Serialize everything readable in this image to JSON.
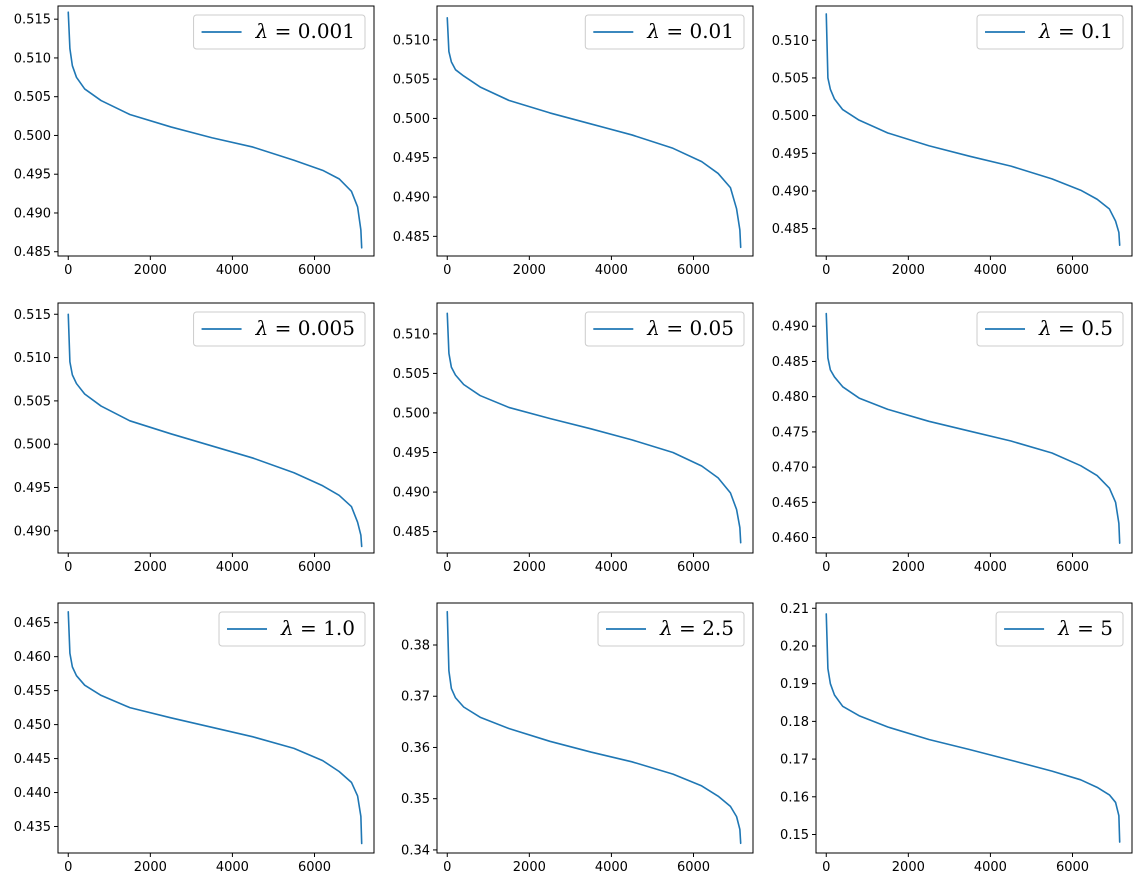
{
  "figure": {
    "colors": {
      "line": "#1f77b4",
      "frame": "#000000",
      "background": "#ffffff",
      "legend_border": "#cccccc"
    }
  },
  "chart_data": [
    {
      "type": "line",
      "legend_label": "λ = 0.001",
      "legend_symbol": "λ",
      "legend_value": "0.001",
      "legend_location": "upper right",
      "xlim": [
        -250,
        7450
      ],
      "ylim": [
        0.48445,
        0.5167
      ],
      "xticks": [
        0,
        2000,
        4000,
        6000
      ],
      "xtick_labels": [
        "0",
        "2000",
        "4000",
        "6000"
      ],
      "yticks": [
        0.485,
        0.49,
        0.495,
        0.5,
        0.505,
        0.51,
        0.515
      ],
      "ytick_labels": [
        "0.485",
        "0.490",
        "0.495",
        "0.500",
        "0.505",
        "0.510",
        "0.515"
      ],
      "x": [
        0,
        40,
        100,
        200,
        400,
        800,
        1500,
        2500,
        3500,
        4500,
        5500,
        6200,
        6600,
        6900,
        7050,
        7130,
        7150
      ],
      "y": [
        0.5159,
        0.5112,
        0.509,
        0.5075,
        0.506,
        0.5045,
        0.5027,
        0.5011,
        0.4997,
        0.4985,
        0.4968,
        0.4955,
        0.4944,
        0.4928,
        0.4908,
        0.4878,
        0.4855
      ]
    },
    {
      "type": "line",
      "legend_label": "λ = 0.01",
      "legend_symbol": "λ",
      "legend_value": "0.01",
      "legend_location": "upper right",
      "xlim": [
        -250,
        7450
      ],
      "ylim": [
        0.4825,
        0.5143
      ],
      "xticks": [
        0,
        2000,
        4000,
        6000
      ],
      "xtick_labels": [
        "0",
        "2000",
        "4000",
        "6000"
      ],
      "yticks": [
        0.485,
        0.49,
        0.495,
        0.5,
        0.505,
        0.51
      ],
      "ytick_labels": [
        "0.485",
        "0.490",
        "0.495",
        "0.500",
        "0.505",
        "0.510"
      ],
      "x": [
        0,
        40,
        100,
        200,
        400,
        800,
        1500,
        2500,
        3500,
        4500,
        5500,
        6200,
        6600,
        6900,
        7050,
        7130,
        7150
      ],
      "y": [
        0.5128,
        0.5085,
        0.5072,
        0.5062,
        0.5054,
        0.504,
        0.5023,
        0.5007,
        0.4993,
        0.4979,
        0.4962,
        0.4945,
        0.493,
        0.4912,
        0.4885,
        0.4858,
        0.4836
      ]
    },
    {
      "type": "line",
      "legend_label": "λ = 0.1",
      "legend_symbol": "λ",
      "legend_value": "0.1",
      "legend_location": "upper right",
      "xlim": [
        -250,
        7450
      ],
      "ylim": [
        0.48137,
        0.51455
      ],
      "xticks": [
        0,
        2000,
        4000,
        6000
      ],
      "xtick_labels": [
        "0",
        "2000",
        "4000",
        "6000"
      ],
      "yticks": [
        0.485,
        0.49,
        0.495,
        0.5,
        0.505,
        0.51
      ],
      "ytick_labels": [
        "0.485",
        "0.490",
        "0.495",
        "0.500",
        "0.505",
        "0.510"
      ],
      "x": [
        0,
        40,
        100,
        200,
        400,
        800,
        1500,
        2500,
        3500,
        4500,
        5500,
        6200,
        6600,
        6900,
        7050,
        7130,
        7150
      ],
      "y": [
        0.5135,
        0.505,
        0.5035,
        0.5022,
        0.5008,
        0.4994,
        0.4977,
        0.496,
        0.4946,
        0.4933,
        0.4916,
        0.4901,
        0.4889,
        0.4876,
        0.486,
        0.4845,
        0.4828
      ]
    },
    {
      "type": "line",
      "legend_label": "λ = 0.005",
      "legend_symbol": "λ",
      "legend_value": "0.005",
      "legend_location": "upper right",
      "xlim": [
        -250,
        7450
      ],
      "ylim": [
        0.48744,
        0.5163
      ],
      "xticks": [
        0,
        2000,
        4000,
        6000
      ],
      "xtick_labels": [
        "0",
        "2000",
        "4000",
        "6000"
      ],
      "yticks": [
        0.49,
        0.495,
        0.5,
        0.505,
        0.51,
        0.515
      ],
      "ytick_labels": [
        "0.490",
        "0.495",
        "0.500",
        "0.505",
        "0.510",
        "0.515"
      ],
      "x": [
        0,
        40,
        100,
        200,
        400,
        800,
        1500,
        2500,
        3500,
        4500,
        5500,
        6200,
        6600,
        6900,
        7050,
        7130,
        7150
      ],
      "y": [
        0.515,
        0.5095,
        0.508,
        0.507,
        0.5058,
        0.5044,
        0.5027,
        0.5012,
        0.4998,
        0.4984,
        0.4967,
        0.4952,
        0.4941,
        0.4928,
        0.491,
        0.4895,
        0.4882
      ]
    },
    {
      "type": "line",
      "legend_label": "λ = 0.05",
      "legend_symbol": "λ",
      "legend_value": "0.05",
      "legend_location": "upper right",
      "xlim": [
        -250,
        7450
      ],
      "ylim": [
        0.4823,
        0.5139
      ],
      "xticks": [
        0,
        2000,
        4000,
        6000
      ],
      "xtick_labels": [
        "0",
        "2000",
        "4000",
        "6000"
      ],
      "yticks": [
        0.485,
        0.49,
        0.495,
        0.5,
        0.505,
        0.51
      ],
      "ytick_labels": [
        "0.485",
        "0.490",
        "0.495",
        "0.500",
        "0.505",
        "0.510"
      ],
      "x": [
        0,
        40,
        100,
        200,
        400,
        800,
        1500,
        2500,
        3500,
        4500,
        5500,
        6200,
        6600,
        6900,
        7050,
        7130,
        7150
      ],
      "y": [
        0.5126,
        0.5075,
        0.5058,
        0.5048,
        0.5036,
        0.5022,
        0.5007,
        0.4993,
        0.498,
        0.4966,
        0.495,
        0.4933,
        0.4918,
        0.4899,
        0.4878,
        0.4855,
        0.4836
      ]
    },
    {
      "type": "line",
      "legend_label": "λ = 0.5",
      "legend_symbol": "λ",
      "legend_value": "0.5",
      "legend_location": "upper right",
      "xlim": [
        -250,
        7450
      ],
      "ylim": [
        0.4578,
        0.4933
      ],
      "xticks": [
        0,
        2000,
        4000,
        6000
      ],
      "xtick_labels": [
        "0",
        "2000",
        "4000",
        "6000"
      ],
      "yticks": [
        0.46,
        0.465,
        0.47,
        0.475,
        0.48,
        0.485,
        0.49
      ],
      "ytick_labels": [
        "0.460",
        "0.465",
        "0.470",
        "0.475",
        "0.480",
        "0.485",
        "0.490"
      ],
      "x": [
        0,
        40,
        100,
        200,
        400,
        800,
        1500,
        2500,
        3500,
        4500,
        5500,
        6200,
        6600,
        6900,
        7050,
        7130,
        7150
      ],
      "y": [
        0.4918,
        0.4855,
        0.4838,
        0.4828,
        0.4814,
        0.4798,
        0.4782,
        0.4765,
        0.4751,
        0.4737,
        0.472,
        0.4702,
        0.4688,
        0.467,
        0.465,
        0.462,
        0.4592
      ]
    },
    {
      "type": "line",
      "legend_label": "λ = 1.0",
      "legend_symbol": "λ",
      "legend_value": "1.0",
      "legend_location": "upper right",
      "xlim": [
        -250,
        7450
      ],
      "ylim": [
        0.4311,
        0.4679
      ],
      "xticks": [
        0,
        2000,
        4000,
        6000
      ],
      "xtick_labels": [
        "0",
        "2000",
        "4000",
        "6000"
      ],
      "yticks": [
        0.435,
        0.44,
        0.445,
        0.45,
        0.455,
        0.46,
        0.465
      ],
      "ytick_labels": [
        "0.435",
        "0.440",
        "0.445",
        "0.450",
        "0.455",
        "0.460",
        "0.465"
      ],
      "x": [
        0,
        40,
        100,
        200,
        400,
        800,
        1500,
        2500,
        3500,
        4500,
        5500,
        6200,
        6600,
        6900,
        7050,
        7130,
        7150
      ],
      "y": [
        0.4666,
        0.4605,
        0.4585,
        0.4572,
        0.4558,
        0.4543,
        0.4525,
        0.451,
        0.4496,
        0.4482,
        0.4465,
        0.4447,
        0.4431,
        0.4415,
        0.4395,
        0.4365,
        0.4325
      ]
    },
    {
      "type": "line",
      "legend_label": "λ = 2.5",
      "legend_symbol": "λ",
      "legend_value": "2.5",
      "legend_location": "upper right",
      "xlim": [
        -250,
        7450
      ],
      "ylim": [
        0.3394,
        0.3882
      ],
      "xticks": [
        0,
        2000,
        4000,
        6000
      ],
      "xtick_labels": [
        "0",
        "2000",
        "4000",
        "6000"
      ],
      "yticks": [
        0.34,
        0.35,
        0.36,
        0.37,
        0.38
      ],
      "ytick_labels": [
        "0.34",
        "0.35",
        "0.36",
        "0.37",
        "0.38"
      ],
      "x": [
        0,
        40,
        100,
        200,
        400,
        800,
        1500,
        2500,
        3500,
        4500,
        5500,
        6200,
        6600,
        6900,
        7050,
        7130,
        7150
      ],
      "y": [
        0.3865,
        0.375,
        0.3715,
        0.3697,
        0.3679,
        0.3659,
        0.3637,
        0.3612,
        0.3591,
        0.3572,
        0.3548,
        0.3525,
        0.3505,
        0.3485,
        0.3465,
        0.344,
        0.3413
      ]
    },
    {
      "type": "line",
      "legend_label": "λ = 5",
      "legend_symbol": "λ",
      "legend_value": "5",
      "legend_location": "upper right",
      "xlim": [
        -250,
        7450
      ],
      "ylim": [
        0.14509,
        0.2114
      ],
      "xticks": [
        0,
        2000,
        4000,
        6000
      ],
      "xtick_labels": [
        "0",
        "2000",
        "4000",
        "6000"
      ],
      "yticks": [
        0.15,
        0.16,
        0.17,
        0.18,
        0.19,
        0.2,
        0.21
      ],
      "ytick_labels": [
        "0.15",
        "0.16",
        "0.17",
        "0.18",
        "0.19",
        "0.20",
        "0.21"
      ],
      "x": [
        0,
        40,
        100,
        200,
        400,
        800,
        1500,
        2500,
        3500,
        4500,
        5500,
        6200,
        6600,
        6900,
        7050,
        7130,
        7150
      ],
      "y": [
        0.2085,
        0.194,
        0.19,
        0.187,
        0.184,
        0.1815,
        0.1785,
        0.1752,
        0.1725,
        0.1697,
        0.1668,
        0.1645,
        0.1625,
        0.1605,
        0.1585,
        0.155,
        0.148
      ]
    }
  ]
}
